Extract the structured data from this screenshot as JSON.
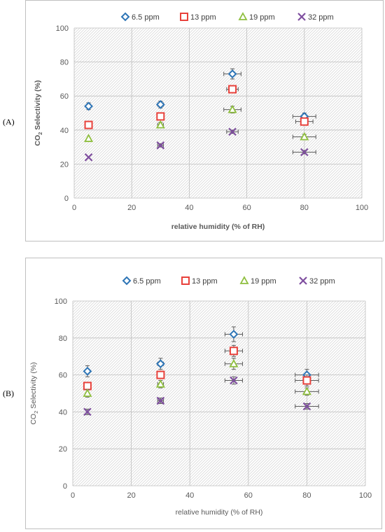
{
  "figure": {
    "panels": [
      {
        "label": "(A)"
      },
      {
        "label": "(B)"
      }
    ]
  },
  "chart_data": [
    {
      "type": "scatter",
      "panel": "(A)",
      "xlabel": "relative humidity (% of RH)",
      "ylabel_parts": {
        "pre": "CO",
        "sub": "2",
        "post": " Selectivity (%)"
      },
      "xlim": [
        0,
        100
      ],
      "ylim": [
        0,
        100
      ],
      "xticks": [
        0,
        20,
        40,
        60,
        80,
        100
      ],
      "yticks": [
        0,
        20,
        40,
        60,
        80,
        100
      ],
      "grid": true,
      "legend_position": "top",
      "series": [
        {
          "name": "6.5 ppm",
          "marker": "diamond",
          "color": "#2e75b6",
          "points": [
            {
              "x": 5,
              "y": 54,
              "yerr": 2
            },
            {
              "x": 30,
              "y": 55,
              "xerr": 1,
              "yerr": 2
            },
            {
              "x": 55,
              "y": 73,
              "xerr": 3,
              "yerr": 3
            },
            {
              "x": 80,
              "y": 48,
              "xerr": 4,
              "yerr": 2
            }
          ]
        },
        {
          "name": "13 ppm",
          "marker": "square",
          "color": "#e8413b",
          "points": [
            {
              "x": 5,
              "y": 43
            },
            {
              "x": 30,
              "y": 48,
              "yerr": 2
            },
            {
              "x": 55,
              "y": 64,
              "xerr": 2,
              "yerr": 2
            },
            {
              "x": 80,
              "y": 45,
              "xerr": 3,
              "yerr": 2
            }
          ]
        },
        {
          "name": "19 ppm",
          "marker": "triangle",
          "color": "#8fbf3f",
          "points": [
            {
              "x": 5,
              "y": 35
            },
            {
              "x": 30,
              "y": 43,
              "xerr": 1,
              "yerr": 1.5
            },
            {
              "x": 55,
              "y": 52,
              "xerr": 3,
              "yerr": 2
            },
            {
              "x": 80,
              "y": 36,
              "xerr": 4,
              "yerr": 1.5
            }
          ]
        },
        {
          "name": "32 ppm",
          "marker": "x",
          "color": "#7f4f9f",
          "points": [
            {
              "x": 5,
              "y": 24
            },
            {
              "x": 30,
              "y": 31,
              "xerr": 1,
              "yerr": 1
            },
            {
              "x": 55,
              "y": 39,
              "xerr": 2,
              "yerr": 1
            },
            {
              "x": 80,
              "y": 27,
              "xerr": 4,
              "yerr": 1
            }
          ]
        }
      ]
    },
    {
      "type": "scatter",
      "panel": "(B)",
      "xlabel": "relative humidity (% of RH)",
      "ylabel_parts": {
        "pre": "CO",
        "sub": "2",
        "post": " Selectivity (%)"
      },
      "xlim": [
        0,
        100
      ],
      "ylim": [
        0,
        100
      ],
      "xticks": [
        0,
        20,
        40,
        60,
        80,
        100
      ],
      "yticks": [
        0,
        20,
        40,
        60,
        80,
        100
      ],
      "grid": true,
      "legend_position": "top",
      "series": [
        {
          "name": "6.5 ppm",
          "marker": "diamond",
          "color": "#2e75b6",
          "points": [
            {
              "x": 5,
              "y": 62,
              "yerr": 3
            },
            {
              "x": 30,
              "y": 66,
              "xerr": 1,
              "yerr": 3
            },
            {
              "x": 55,
              "y": 82,
              "xerr": 3,
              "yerr": 4
            },
            {
              "x": 80,
              "y": 60,
              "xerr": 4,
              "yerr": 3
            }
          ]
        },
        {
          "name": "13 ppm",
          "marker": "square",
          "color": "#e8413b",
          "points": [
            {
              "x": 5,
              "y": 54,
              "yerr": 2
            },
            {
              "x": 30,
              "y": 60,
              "xerr": 1,
              "yerr": 2
            },
            {
              "x": 55,
              "y": 73,
              "xerr": 3,
              "yerr": 3
            },
            {
              "x": 80,
              "y": 57,
              "xerr": 4,
              "yerr": 3
            }
          ]
        },
        {
          "name": "19 ppm",
          "marker": "triangle",
          "color": "#8fbf3f",
          "points": [
            {
              "x": 5,
              "y": 50,
              "yerr": 2
            },
            {
              "x": 30,
              "y": 55,
              "xerr": 1,
              "yerr": 2
            },
            {
              "x": 55,
              "y": 66,
              "xerr": 3,
              "yerr": 3
            },
            {
              "x": 80,
              "y": 51,
              "xerr": 4,
              "yerr": 2
            }
          ]
        },
        {
          "name": "32 ppm",
          "marker": "x",
          "color": "#7f4f9f",
          "points": [
            {
              "x": 5,
              "y": 40,
              "yerr": 1.5
            },
            {
              "x": 30,
              "y": 46,
              "xerr": 1,
              "yerr": 1.5
            },
            {
              "x": 55,
              "y": 57,
              "xerr": 3,
              "yerr": 2
            },
            {
              "x": 80,
              "y": 43,
              "xerr": 4,
              "yerr": 1.5
            }
          ]
        }
      ]
    }
  ]
}
